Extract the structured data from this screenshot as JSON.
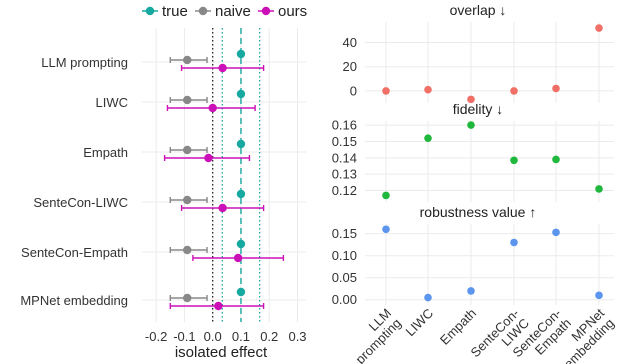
{
  "legend": {
    "items": [
      {
        "name": "true",
        "color": "#17a8a0"
      },
      {
        "name": "naive",
        "color": "#888888"
      },
      {
        "name": "ours",
        "color": "#cc10b8"
      }
    ]
  },
  "chart_data": [
    {
      "type": "scatter",
      "subtype": "dot-and-whisker",
      "title": "",
      "xlabel": "isolated effect",
      "xlim": [
        -0.25,
        0.33
      ],
      "xticks": [
        -0.2,
        -0.1,
        0.0,
        0.1,
        0.2,
        0.3
      ],
      "xtick_labels": [
        "-0.2",
        "-0.1",
        "0.0",
        "0.1",
        "0.2",
        "0.3"
      ],
      "reference_lines": [
        {
          "x": 0.0,
          "style": "dotted",
          "color": "#222222"
        },
        {
          "x": 0.1,
          "style": "dashed",
          "color": "#17a8a0"
        },
        {
          "x": 0.034,
          "style": "dotted",
          "color": "#17a8a0"
        },
        {
          "x": 0.166,
          "style": "dotted",
          "color": "#17a8a0"
        }
      ],
      "categories": [
        "LLM prompting",
        "LIWC",
        "Empath",
        "SenteCon-LIWC",
        "SenteCon-Empath",
        "MPNet embedding"
      ],
      "series": [
        {
          "name": "true",
          "color": "#17a8a0",
          "values": [
            0.1,
            0.1,
            0.1,
            0.1,
            0.1,
            0.1
          ]
        },
        {
          "name": "naive",
          "color": "#888888",
          "values": [
            -0.09,
            -0.09,
            -0.09,
            -0.09,
            -0.09,
            -0.09
          ],
          "ci": [
            [
              -0.15,
              -0.02
            ],
            [
              -0.15,
              -0.02
            ],
            [
              -0.15,
              -0.02
            ],
            [
              -0.15,
              -0.02
            ],
            [
              -0.15,
              -0.02
            ],
            [
              -0.15,
              -0.02
            ]
          ]
        },
        {
          "name": "ours",
          "color": "#cc10b8",
          "values": [
            0.035,
            0.0,
            -0.015,
            0.035,
            0.09,
            0.02
          ],
          "ci": [
            [
              -0.11,
              0.18
            ],
            [
              -0.16,
              0.15
            ],
            [
              -0.17,
              0.13
            ],
            [
              -0.11,
              0.18
            ],
            [
              -0.07,
              0.25
            ],
            [
              -0.15,
              0.18
            ]
          ]
        }
      ],
      "grid": true
    },
    {
      "type": "scatter",
      "title": "overlap ↓",
      "categories": [
        "LLM prompting",
        "LIWC",
        "Empath",
        "SenteCon-LIWC",
        "SenteCon-Empath",
        "MPNet embedding"
      ],
      "values": [
        0,
        1,
        -7,
        0,
        2,
        52
      ],
      "color": "#f07068",
      "ylim": [
        -10,
        57
      ],
      "yticks": [
        0,
        20,
        40
      ],
      "ytick_labels": [
        "0",
        "20",
        "40"
      ],
      "grid": true
    },
    {
      "type": "scatter",
      "title": "fidelity ↓",
      "categories": [
        "LLM prompting",
        "LIWC",
        "Empath",
        "SenteCon-LIWC",
        "SenteCon-Empath",
        "MPNet embedding"
      ],
      "values": [
        0.117,
        0.152,
        0.16,
        0.1385,
        0.139,
        0.121
      ],
      "color": "#1fb83c",
      "ylim": [
        0.113,
        0.1625
      ],
      "yticks": [
        0.12,
        0.13,
        0.14,
        0.15,
        0.16
      ],
      "ytick_labels": [
        "0.12",
        "0.13",
        "0.14",
        "0.15",
        "0.16"
      ],
      "grid": true
    },
    {
      "type": "scatter",
      "title": "robustness value ↑",
      "categories": [
        "LLM prompting",
        "LIWC",
        "Empath",
        "SenteCon-LIWC",
        "SenteCon-Empath",
        "MPNet embedding"
      ],
      "category_labels": [
        [
          "LLM",
          "prompting"
        ],
        [
          "LIWC"
        ],
        [
          "Empath"
        ],
        [
          "SenteCon-",
          "LIWC"
        ],
        [
          "SenteCon-",
          "Empath"
        ],
        [
          "MPNet",
          "embedding"
        ]
      ],
      "values": [
        0.16,
        0.005,
        0.02,
        0.13,
        0.153,
        0.01
      ],
      "color": "#5c95ee",
      "ylim": [
        -0.012,
        0.172
      ],
      "yticks": [
        0.0,
        0.05,
        0.1,
        0.15
      ],
      "ytick_labels": [
        "0.00",
        "0.05",
        "0.10",
        "0.15"
      ],
      "grid": true
    }
  ]
}
